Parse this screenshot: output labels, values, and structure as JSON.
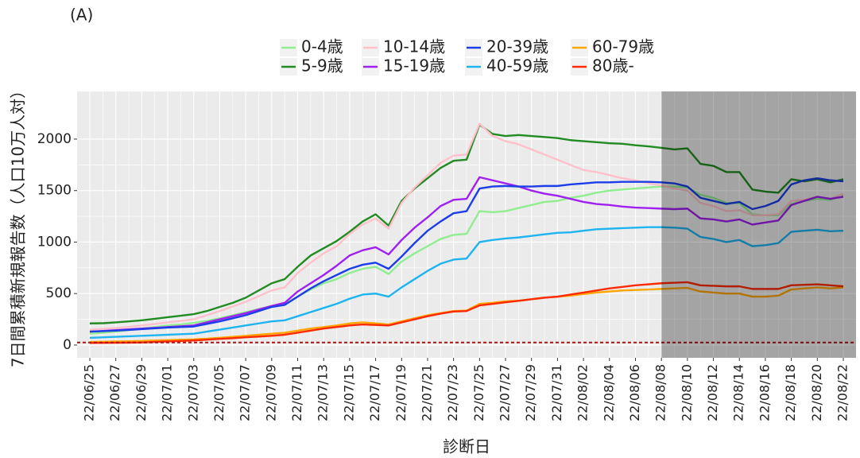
{
  "chart_data": {
    "type": "line",
    "panel_label": "(A)",
    "x_label": "診断日",
    "y_label": "7日間累積新規報告数（人口10万人対）",
    "categories": [
      "22/06/25",
      null,
      "22/06/27",
      null,
      "22/06/29",
      null,
      "22/07/01",
      null,
      "22/07/03",
      null,
      "22/07/05",
      null,
      "22/07/07",
      null,
      "22/07/09",
      null,
      "22/07/11",
      null,
      "22/07/13",
      null,
      "22/07/15",
      null,
      "22/07/17",
      null,
      "22/07/19",
      null,
      "22/07/21",
      null,
      "22/07/23",
      null,
      "22/07/25",
      null,
      "22/07/27",
      null,
      "22/07/29",
      null,
      "22/07/31",
      null,
      "22/08/02",
      null,
      "22/08/04",
      null,
      "22/08/06",
      null,
      "22/08/08",
      null,
      "22/08/10",
      null,
      "22/08/12",
      null,
      "22/08/14",
      null,
      "22/08/16",
      null,
      "22/08/18",
      null,
      "22/08/20",
      null,
      "22/08/22"
    ],
    "series": [
      {
        "name": "0-4歳",
        "color": "#90ee90",
        "values": [
          110,
          120,
          130,
          145,
          160,
          175,
          190,
          200,
          215,
          235,
          260,
          290,
          320,
          350,
          380,
          400,
          470,
          540,
          600,
          640,
          700,
          740,
          760,
          690,
          810,
          890,
          960,
          1030,
          1070,
          1080,
          1300,
          1290,
          1300,
          1330,
          1360,
          1390,
          1400,
          1430,
          1450,
          1480,
          1500,
          1510,
          1520,
          1530,
          1540,
          1540,
          1530,
          1460,
          1430,
          1380,
          1380,
          1270,
          1260,
          1260,
          1370,
          1400,
          1420,
          1410,
          1460
        ]
      },
      {
        "name": "5-9歳",
        "color": "#228b22",
        "values": [
          210,
          212,
          220,
          230,
          240,
          255,
          270,
          285,
          300,
          330,
          370,
          410,
          460,
          530,
          600,
          640,
          760,
          870,
          940,
          1010,
          1100,
          1200,
          1270,
          1160,
          1400,
          1520,
          1620,
          1720,
          1790,
          1800,
          2140,
          2050,
          2030,
          2040,
          2030,
          2020,
          2010,
          1990,
          1980,
          1970,
          1960,
          1955,
          1940,
          1930,
          1915,
          1900,
          1910,
          1760,
          1740,
          1680,
          1680,
          1510,
          1490,
          1480,
          1610,
          1590,
          1610,
          1580,
          1610
        ]
      },
      {
        "name": "10-14歳",
        "color": "#ffc0cb",
        "values": [
          150,
          157,
          165,
          177,
          190,
          205,
          220,
          235,
          250,
          290,
          330,
          375,
          420,
          475,
          530,
          560,
          700,
          800,
          890,
          960,
          1080,
          1170,
          1230,
          1130,
          1380,
          1530,
          1650,
          1770,
          1840,
          1850,
          2150,
          2030,
          1980,
          1950,
          1900,
          1850,
          1800,
          1750,
          1700,
          1680,
          1650,
          1620,
          1600,
          1570,
          1550,
          1520,
          1500,
          1380,
          1350,
          1300,
          1310,
          1260,
          1260,
          1270,
          1400,
          1410,
          1440,
          1420,
          1470
        ]
      },
      {
        "name": "15-19歳",
        "color": "#a020f0",
        "values": [
          130,
          137,
          145,
          152,
          160,
          167,
          175,
          182,
          190,
          220,
          250,
          280,
          310,
          345,
          380,
          410,
          520,
          600,
          680,
          770,
          870,
          920,
          950,
          880,
          1020,
          1140,
          1240,
          1350,
          1410,
          1420,
          1630,
          1600,
          1570,
          1540,
          1500,
          1470,
          1450,
          1420,
          1390,
          1370,
          1360,
          1345,
          1335,
          1330,
          1325,
          1320,
          1325,
          1230,
          1220,
          1200,
          1220,
          1170,
          1190,
          1210,
          1360,
          1400,
          1440,
          1420,
          1440
        ]
      },
      {
        "name": "20-39歳",
        "color": "#1c3ee8",
        "values": [
          130,
          135,
          140,
          147,
          155,
          162,
          170,
          175,
          180,
          205,
          230,
          260,
          290,
          330,
          370,
          390,
          470,
          550,
          620,
          680,
          740,
          780,
          800,
          740,
          860,
          990,
          1110,
          1200,
          1280,
          1300,
          1520,
          1540,
          1545,
          1540,
          1540,
          1545,
          1545,
          1560,
          1570,
          1580,
          1580,
          1585,
          1585,
          1585,
          1580,
          1570,
          1540,
          1430,
          1400,
          1370,
          1390,
          1320,
          1350,
          1400,
          1560,
          1600,
          1620,
          1600,
          1590
        ]
      },
      {
        "name": "40-59歳",
        "color": "#1eb4f0",
        "values": [
          70,
          75,
          80,
          85,
          90,
          95,
          100,
          105,
          110,
          130,
          150,
          170,
          190,
          210,
          230,
          240,
          280,
          320,
          360,
          400,
          450,
          490,
          500,
          470,
          560,
          640,
          720,
          790,
          830,
          840,
          1000,
          1020,
          1035,
          1045,
          1060,
          1075,
          1090,
          1095,
          1110,
          1125,
          1130,
          1135,
          1140,
          1145,
          1145,
          1140,
          1130,
          1050,
          1030,
          1000,
          1020,
          960,
          970,
          990,
          1100,
          1110,
          1120,
          1105,
          1110
        ]
      },
      {
        "name": "60-79歳",
        "color": "#ffa500",
        "values": [
          30,
          32,
          35,
          37,
          40,
          44,
          48,
          52,
          55,
          62,
          70,
          80,
          90,
          100,
          110,
          120,
          140,
          160,
          175,
          190,
          210,
          220,
          210,
          200,
          230,
          260,
          290,
          310,
          330,
          335,
          400,
          410,
          425,
          430,
          445,
          460,
          470,
          480,
          495,
          510,
          520,
          530,
          535,
          540,
          545,
          550,
          555,
          520,
          510,
          500,
          500,
          470,
          470,
          480,
          540,
          550,
          560,
          550,
          560
        ]
      },
      {
        "name": "80歳-",
        "color": "#ff2a00",
        "values": [
          20,
          21,
          22,
          23,
          25,
          30,
          35,
          40,
          45,
          52,
          60,
          67,
          75,
          82,
          90,
          100,
          120,
          140,
          160,
          175,
          190,
          200,
          195,
          190,
          220,
          250,
          280,
          305,
          325,
          330,
          385,
          400,
          415,
          430,
          445,
          460,
          470,
          490,
          510,
          530,
          550,
          565,
          580,
          590,
          600,
          605,
          610,
          580,
          575,
          570,
          570,
          545,
          545,
          545,
          580,
          585,
          590,
          580,
          570
        ]
      }
    ],
    "ylim": [
      -124,
      2463
    ],
    "yticks": [
      0,
      500,
      1000,
      1500,
      2000
    ],
    "grid": true,
    "reference_line": {
      "value": 25,
      "color": "#b01515"
    },
    "shaded_from": "22/08/08"
  }
}
